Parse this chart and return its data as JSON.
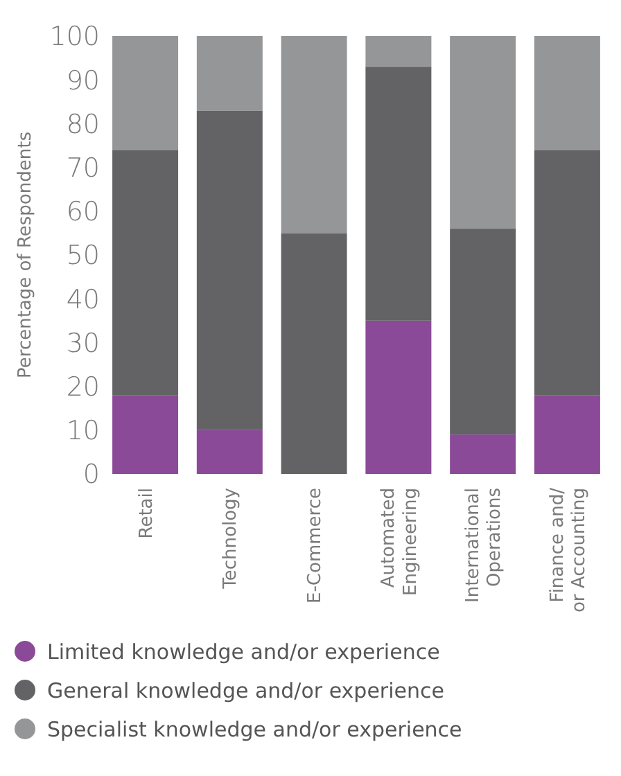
{
  "chart_data": {
    "type": "bar",
    "stacked": true,
    "ylabel": "Percentage of Respondents",
    "categories": [
      "Retail",
      "Technology",
      "E-Commerce",
      "Automated\nEngineering",
      "International\nOperations",
      "Finance and/\nor Accounting"
    ],
    "series": [
      {
        "name": "Limited knowledge and/or experience",
        "color": "#8b4a98",
        "values": [
          18,
          10,
          0,
          35,
          9,
          18
        ]
      },
      {
        "name": "General knowledge and/or experience",
        "color": "#636365",
        "values": [
          56,
          73,
          55,
          58,
          47,
          56
        ]
      },
      {
        "name": "Specialist knowledge and/or experience",
        "color": "#959698",
        "values": [
          26,
          17,
          45,
          7,
          44,
          26
        ]
      }
    ],
    "ylim": [
      0,
      100
    ],
    "yticks": [
      0,
      10,
      20,
      30,
      40,
      50,
      60,
      70,
      80,
      90,
      100
    ],
    "grid": false,
    "legend": "bottom"
  }
}
